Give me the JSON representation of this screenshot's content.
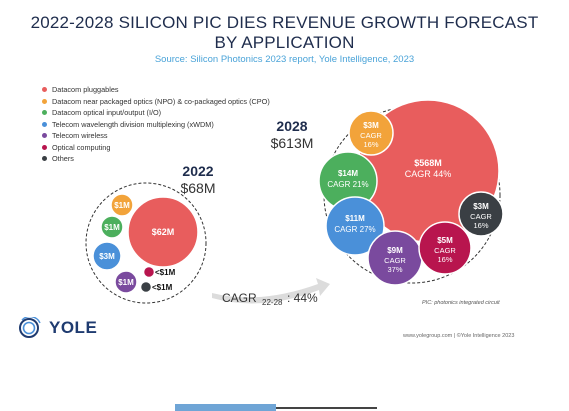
{
  "header": {
    "title_line1": "2022-2028 SILICON PIC DIES REVENUE GROWTH FORECAST",
    "title_line2": "BY APPLICATION",
    "source": "Source: Silicon Photonics 2023 report, Yole Intelligence, 2023"
  },
  "chart_data": {
    "type": "bubble",
    "title": "2022-2028 SILICON PIC DIES REVENUE GROWTH FORECAST BY APPLICATION",
    "categories": [
      "Datacom pluggables",
      "Datacom near packaged optics (NPO) & co-packaged optics (CPO)",
      "Datacom optical input/output  (I/O)",
      "Telecom wavelength division multiplexing (xWDM)",
      "Telecom wireless",
      "Optical computing",
      "Others"
    ],
    "colors": [
      "#e85d5d",
      "#f2a33a",
      "#4caf5d",
      "#4a90d9",
      "#7a4a9e",
      "#b8154e",
      "#3a3f44"
    ],
    "legend_position": "top-left",
    "groups": [
      {
        "year": "2022",
        "total": "$68M",
        "bubbles": [
          {
            "category": "Datacom pluggables",
            "label": "$62M",
            "value": 62
          },
          {
            "category": "Datacom near packaged optics (NPO) & co-packaged optics (CPO)",
            "label": "$1M",
            "value": 1
          },
          {
            "category": "Datacom optical input/output  (I/O)",
            "label": "$1M",
            "value": 1
          },
          {
            "category": "Telecom wavelength division multiplexing (xWDM)",
            "label": "$3M",
            "value": 3
          },
          {
            "category": "Telecom wireless",
            "label": "$1M",
            "value": 1
          },
          {
            "category": "Optical computing",
            "label": "<$1M",
            "value": 0.5
          },
          {
            "category": "Others",
            "label": "<$1M",
            "value": 0.5
          }
        ]
      },
      {
        "year": "2028",
        "total": "$613M",
        "bubbles": [
          {
            "category": "Datacom pluggables",
            "label": "$568M",
            "cagr": "CAGR 44%",
            "value": 568
          },
          {
            "category": "Datacom near packaged optics (NPO) & co-packaged optics (CPO)",
            "label": "$3M",
            "cagr": "CAGR 16%",
            "value": 3
          },
          {
            "category": "Datacom optical input/output  (I/O)",
            "label": "$14M",
            "cagr": "CAGR 21%",
            "value": 14
          },
          {
            "category": "Telecom wavelength division multiplexing (xWDM)",
            "label": "$11M",
            "cagr": "CAGR 27%",
            "value": 11
          },
          {
            "category": "Telecom wireless",
            "label": "$9M",
            "cagr": "CAGR 37%",
            "value": 9
          },
          {
            "category": "Optical computing",
            "label": "$5M",
            "cagr": "CAGR 16%",
            "value": 5
          },
          {
            "category": "Others",
            "label": "$3M",
            "cagr": "CAGR 16%",
            "value": 3
          }
        ]
      }
    ],
    "overall_cagr": {
      "prefix": "CAGR",
      "subscript": "22-28",
      "value": ": 44%"
    }
  },
  "footer": {
    "logo_text": "YOLE",
    "footnote": "PIC: photonics integrated circuit",
    "credit": "www.yolegroup.com | ©Yole Intelligence 2023"
  }
}
